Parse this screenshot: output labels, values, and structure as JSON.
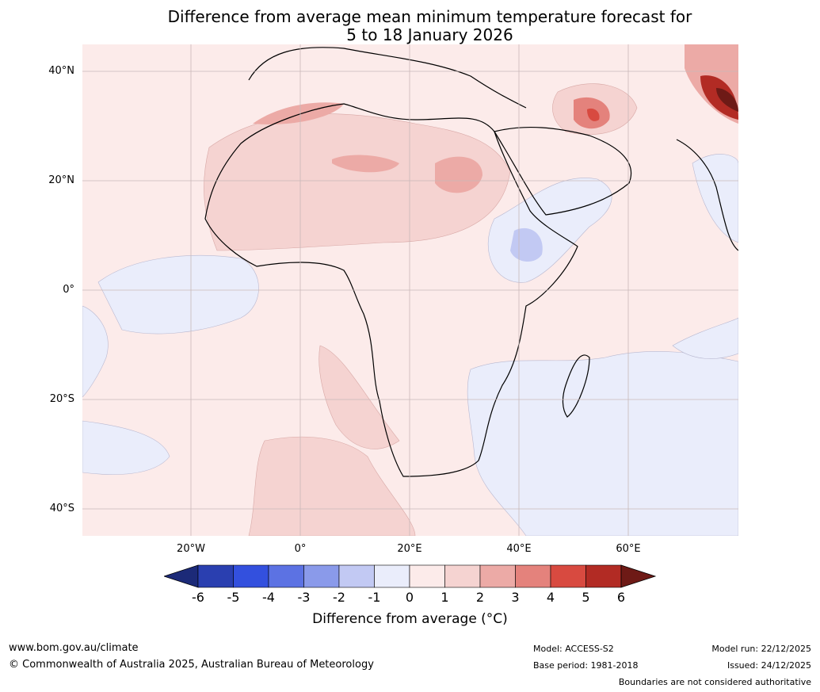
{
  "title": {
    "line1": "Difference from average mean minimum temperature forecast for",
    "line2": "5 to 18 January 2026"
  },
  "map": {
    "lat_ticks": [
      "40°N",
      "20°N",
      "0°",
      "20°S",
      "40°S"
    ],
    "lon_ticks": [
      "20°W",
      "0°",
      "20°E",
      "40°E",
      "60°E"
    ]
  },
  "colorbar": {
    "labels": [
      "-6",
      "-5",
      "-4",
      "-3",
      "-2",
      "-1",
      "0",
      "1",
      "2",
      "3",
      "4",
      "5",
      "6"
    ],
    "colors": [
      "#1c2a78",
      "#2a3fb0",
      "#3350de",
      "#5c72e3",
      "#8a9aea",
      "#c2c9f3",
      "#eaedfb",
      "#fcebea",
      "#f5d3d1",
      "#ecaaa6",
      "#e4827c",
      "#d84a40",
      "#b22b24",
      "#6e1a16"
    ],
    "title": "Difference from average (°C)"
  },
  "footer": {
    "website": "www.bom.gov.au/climate",
    "copyright": "© Commonwealth of Australia 2025, Australian Bureau of Meteorology",
    "model": "Model: ACCESS-S2",
    "base_period": "Base period: 1981-2018",
    "model_run": "Model run: 22/12/2025",
    "issued": "Issued: 24/12/2025",
    "disclaimer": "Boundaries are not considered authoritative"
  }
}
